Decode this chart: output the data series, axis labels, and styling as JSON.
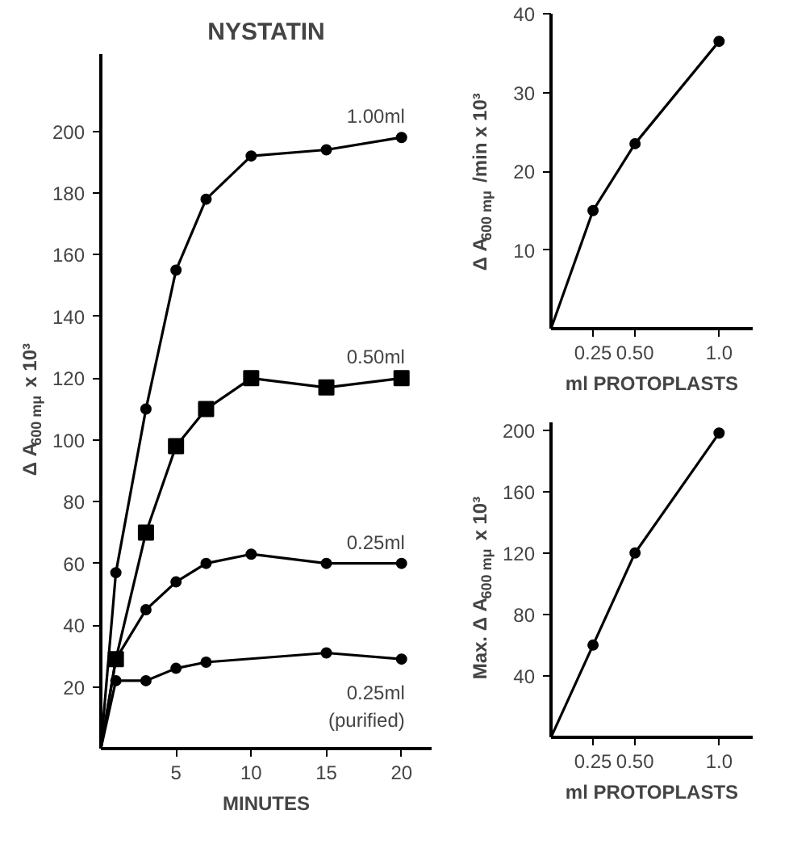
{
  "chart_data": [
    {
      "type": "line",
      "title": "NYSTATIN",
      "xlabel": "MINUTES",
      "ylabel": "Δ A$_{600 mμ}$ x 10³",
      "x": [
        0,
        1,
        3,
        5,
        7,
        10,
        15,
        20
      ],
      "xlim": [
        0,
        22
      ],
      "ylim": [
        0,
        225
      ],
      "xticks": [
        5,
        10,
        15,
        20
      ],
      "yticks": [
        20,
        40,
        60,
        80,
        100,
        120,
        140,
        160,
        180,
        200
      ],
      "marker": "circle",
      "grid": false,
      "series": [
        {
          "name": "1.00ml",
          "color": "#000000",
          "marker": "circle",
          "values": [
            0,
            57,
            110,
            155,
            178,
            192,
            194,
            198
          ]
        },
        {
          "name": "0.50ml",
          "color": "#000000",
          "marker": "square",
          "values": [
            0,
            29,
            70,
            98,
            110,
            120,
            117,
            120
          ]
        },
        {
          "name": "0.25ml",
          "color": "#000000",
          "marker": "circle",
          "values": [
            0,
            29,
            45,
            54,
            60,
            63,
            60,
            60
          ]
        },
        {
          "name": "0.25ml (purified)",
          "color": "#000000",
          "marker": "circle",
          "values": [
            0,
            22,
            22,
            26,
            28,
            null,
            31,
            29
          ]
        }
      ]
    },
    {
      "type": "line",
      "xlabel": "ml PROTOPLASTS",
      "ylabel": "Δ A$_{600 mμ}$ /min x 10³",
      "x": [
        0,
        0.25,
        0.5,
        1.0
      ],
      "xlim": [
        0,
        1.2
      ],
      "ylim": [
        0,
        40
      ],
      "xticks": [
        {
          "value": 0.25,
          "label": "0.25"
        },
        {
          "value": 0.5,
          "label": "0.50"
        },
        {
          "value": 1.0,
          "label": "1.0"
        }
      ],
      "yticks": [
        10,
        20,
        30,
        40
      ],
      "marker": "circle",
      "grid": false,
      "series": [
        {
          "color": "#000000",
          "values": [
            0,
            15,
            23.5,
            36.5
          ]
        }
      ]
    },
    {
      "type": "line",
      "xlabel": "ml PROTOPLASTS",
      "ylabel": "Max. Δ A$_{600 mμ}$ x 10³",
      "x": [
        0,
        0.25,
        0.5,
        1.0
      ],
      "xlim": [
        0,
        1.2
      ],
      "ylim": [
        0,
        205
      ],
      "xticks": [
        {
          "value": 0.25,
          "label": "0.25"
        },
        {
          "value": 0.5,
          "label": "0.50"
        },
        {
          "value": 1.0,
          "label": "1.0"
        }
      ],
      "yticks": [
        40,
        80,
        120,
        160,
        200
      ],
      "marker": "circle",
      "grid": false,
      "series": [
        {
          "color": "#000000",
          "values": [
            0,
            60,
            120,
            198
          ]
        }
      ]
    }
  ]
}
